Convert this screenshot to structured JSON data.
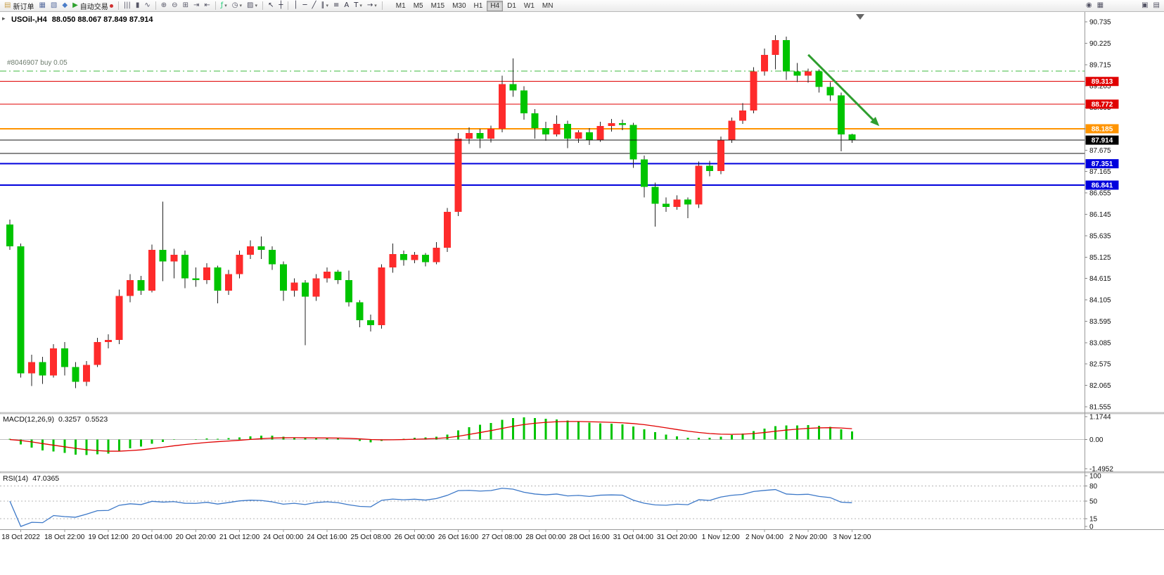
{
  "toolbar": {
    "items": [
      {
        "name": "new-order-button",
        "glyph": "▤",
        "glyph_color": "#c9a14e",
        "label": "新订单"
      },
      {
        "name": "chart-window-button",
        "glyph": "▦",
        "glyph_color": "#5a6fa0"
      },
      {
        "name": "profiles-button",
        "glyph": "▧",
        "glyph_color": "#5a6fa0"
      },
      {
        "name": "metaeditor-button",
        "glyph": "◆",
        "glyph_color": "#4a7dc8"
      },
      {
        "name": "autotrading-button",
        "glyph": "▶",
        "glyph_color": "#2fa12f",
        "label": "自动交易",
        "status_dot": "#d03030"
      },
      {
        "sep": true
      },
      {
        "name": "bar-chart-button",
        "glyph": "|||",
        "glyph_color": "#556"
      },
      {
        "name": "candle-chart-button",
        "glyph": "▮",
        "glyph_color": "#556"
      },
      {
        "name": "line-chart-button",
        "glyph": "∿",
        "glyph_color": "#556"
      },
      {
        "sep": true
      },
      {
        "name": "zoom-in-button",
        "glyph": "⊕",
        "glyph_color": "#556"
      },
      {
        "name": "zoom-out-button",
        "glyph": "⊖",
        "glyph_color": "#556"
      },
      {
        "name": "tile-windows-button",
        "glyph": "⊞",
        "glyph_color": "#556"
      },
      {
        "name": "auto-scroll-button",
        "glyph": "⇥",
        "glyph_color": "#556"
      },
      {
        "name": "chart-shift-button",
        "glyph": "⇤",
        "glyph_color": "#556"
      },
      {
        "sep": true
      },
      {
        "name": "indicators-button",
        "glyph": "ƒ",
        "glyph_color": "#2c7",
        "dropdown": true
      },
      {
        "name": "periods-button",
        "glyph": "◷",
        "glyph_color": "#556",
        "dropdown": true
      },
      {
        "name": "templates-button",
        "glyph": "▨",
        "glyph_color": "#556",
        "dropdown": true
      },
      {
        "sep": true
      },
      {
        "name": "cursor-button",
        "glyph": "↖",
        "glyph_color": "#334"
      },
      {
        "name": "crosshair-button",
        "glyph": "┼",
        "glyph_color": "#334"
      },
      {
        "sep": true
      },
      {
        "name": "vertical-line-button",
        "glyph": "│",
        "glyph_color": "#334"
      },
      {
        "name": "horizontal-line-button",
        "glyph": "─",
        "glyph_color": "#334"
      },
      {
        "name": "trendline-button",
        "glyph": "╱",
        "glyph_color": "#334"
      },
      {
        "name": "channel-button",
        "glyph": "∥",
        "glyph_color": "#334",
        "dropdown": true
      },
      {
        "name": "fibonacci-button",
        "glyph": "≡",
        "glyph_color": "#334"
      },
      {
        "name": "text-button",
        "glyph": "A",
        "glyph_color": "#334"
      },
      {
        "name": "label-button",
        "glyph": "T",
        "glyph_color": "#334",
        "dropdown": true
      },
      {
        "name": "arrows-button",
        "glyph": "→",
        "glyph_color": "#334",
        "dropdown": true
      },
      {
        "sep": true
      }
    ],
    "timeframes": {
      "options": [
        "M1",
        "M5",
        "M15",
        "M30",
        "H1",
        "H4",
        "D1",
        "W1",
        "MN"
      ],
      "active": "H4"
    },
    "right_items": [
      {
        "name": "search-button",
        "glyph": "◉",
        "glyph_color": "#556"
      },
      {
        "name": "new-chart-button",
        "glyph": "▦",
        "glyph_color": "#556"
      }
    ],
    "far_right_items": [
      {
        "name": "data-window-button",
        "glyph": "▣",
        "glyph_color": "#556"
      },
      {
        "name": "market-watch-button",
        "glyph": "▤",
        "glyph_color": "#556"
      }
    ]
  },
  "chart": {
    "one_click_glyph": "▸",
    "title": {
      "symbol": "USOil-,H4",
      "ohlc": "88.050 88.067 87.849 87.914"
    },
    "position": {
      "label": "#8046907 buy 0.05",
      "price": 89.56,
      "color": "#3cb83c"
    },
    "price_axis": {
      "labels": [
        "90.735",
        "90.225",
        "89.715",
        "89.205",
        "88.695",
        "88.185",
        "87.675",
        "87.165",
        "86.655",
        "86.145",
        "85.635",
        "85.125",
        "84.615",
        "84.105",
        "83.595",
        "83.085",
        "82.575",
        "82.065",
        "81.555"
      ]
    },
    "hlines": [
      {
        "name": "resistance-line-upper",
        "price": 89.313,
        "color": "#e00000",
        "width": 1,
        "badge": "89.313"
      },
      {
        "name": "resistance-line-lower",
        "price": 88.772,
        "color": "#e00000",
        "width": 1,
        "badge": "88.772"
      },
      {
        "name": "pivot-line-orange",
        "price": 88.185,
        "color": "#ff9400",
        "width": 2,
        "badge": "88.185"
      },
      {
        "name": "support-line-black",
        "price": 87.6,
        "color": "#141414",
        "width": 1,
        "badge": null
      },
      {
        "name": "support-line-blue-upper",
        "price": 87.351,
        "color": "#0000dd",
        "width": 2,
        "badge": "87.351"
      },
      {
        "name": "support-line-blue-lower",
        "price": 86.841,
        "color": "#0000dd",
        "width": 2,
        "badge": "86.841"
      }
    ],
    "bid": {
      "price": 87.914,
      "color": "#141414",
      "badge": "87.914",
      "badge_bg": "#000000"
    },
    "arrow": {
      "from_index": 73,
      "from_price": 89.95,
      "to_index": 79.5,
      "to_price": 88.25,
      "color": "#2f9e2f"
    }
  },
  "chart_data": {
    "type": "candlestick",
    "symbol": "USOil-",
    "timeframe": "H4",
    "title": "USOil-,H4",
    "price_max": 90.735,
    "price_min": 81.555,
    "price_step": 0.51,
    "up_color": "#fe2b2b",
    "down_color": "#00c400",
    "wick_color": "#222222",
    "candles": [
      [
        85.9,
        86.02,
        85.3,
        85.38
      ],
      [
        85.38,
        85.45,
        82.25,
        82.35
      ],
      [
        82.35,
        82.8,
        82.05,
        82.62
      ],
      [
        82.62,
        82.75,
        82.1,
        82.3
      ],
      [
        82.3,
        83.05,
        82.25,
        82.95
      ],
      [
        82.95,
        83.1,
        82.3,
        82.5
      ],
      [
        82.5,
        82.62,
        82.0,
        82.15
      ],
      [
        82.15,
        82.65,
        82.05,
        82.55
      ],
      [
        82.55,
        83.2,
        82.5,
        83.1
      ],
      [
        83.1,
        83.28,
        82.95,
        83.15
      ],
      [
        83.15,
        84.35,
        83.05,
        84.2
      ],
      [
        84.2,
        84.72,
        84.05,
        84.58
      ],
      [
        84.58,
        84.68,
        84.22,
        84.32
      ],
      [
        84.32,
        85.42,
        84.28,
        85.3
      ],
      [
        85.3,
        86.45,
        84.55,
        85.02
      ],
      [
        85.02,
        85.32,
        84.62,
        85.18
      ],
      [
        85.18,
        85.28,
        84.38,
        84.62
      ],
      [
        84.62,
        84.88,
        84.42,
        84.58
      ],
      [
        84.58,
        84.98,
        84.48,
        84.88
      ],
      [
        84.88,
        84.92,
        84.02,
        84.32
      ],
      [
        84.32,
        84.82,
        84.22,
        84.72
      ],
      [
        84.72,
        85.28,
        84.62,
        85.18
      ],
      [
        85.18,
        85.52,
        85.08,
        85.38
      ],
      [
        85.38,
        85.62,
        85.08,
        85.3
      ],
      [
        85.3,
        85.38,
        84.82,
        84.95
      ],
      [
        84.95,
        85.02,
        84.08,
        84.32
      ],
      [
        84.32,
        84.62,
        84.18,
        84.52
      ],
      [
        84.52,
        84.58,
        83.02,
        84.18
      ],
      [
        84.18,
        84.72,
        84.08,
        84.62
      ],
      [
        84.62,
        84.88,
        84.52,
        84.78
      ],
      [
        84.78,
        84.82,
        84.48,
        84.58
      ],
      [
        84.58,
        84.8,
        83.95,
        84.05
      ],
      [
        84.05,
        84.1,
        83.45,
        83.62
      ],
      [
        83.62,
        83.75,
        83.35,
        83.5
      ],
      [
        83.5,
        84.95,
        83.42,
        84.88
      ],
      [
        84.88,
        85.45,
        84.75,
        85.2
      ],
      [
        85.2,
        85.28,
        84.92,
        85.05
      ],
      [
        85.05,
        85.25,
        84.98,
        85.18
      ],
      [
        85.18,
        85.22,
        84.9,
        85.0
      ],
      [
        85.0,
        85.48,
        84.95,
        85.35
      ],
      [
        85.35,
        86.3,
        85.25,
        86.2
      ],
      [
        86.2,
        88.08,
        86.1,
        87.95
      ],
      [
        87.95,
        88.22,
        87.82,
        88.08
      ],
      [
        88.08,
        88.18,
        87.72,
        87.95
      ],
      [
        87.95,
        88.26,
        87.86,
        88.18
      ],
      [
        88.18,
        89.45,
        88.1,
        89.25
      ],
      [
        89.25,
        89.86,
        88.95,
        89.1
      ],
      [
        89.1,
        89.2,
        88.4,
        88.55
      ],
      [
        88.55,
        88.65,
        87.95,
        88.2
      ],
      [
        88.2,
        88.35,
        87.9,
        88.05
      ],
      [
        88.05,
        88.5,
        88.0,
        88.3
      ],
      [
        88.3,
        88.38,
        87.72,
        87.95
      ],
      [
        87.95,
        88.15,
        87.85,
        88.1
      ],
      [
        88.1,
        88.2,
        87.8,
        87.92
      ],
      [
        87.92,
        88.35,
        87.87,
        88.25
      ],
      [
        88.25,
        88.42,
        88.12,
        88.32
      ],
      [
        88.32,
        88.4,
        88.15,
        88.28
      ],
      [
        88.28,
        88.33,
        87.25,
        87.45
      ],
      [
        87.45,
        87.55,
        86.55,
        86.8
      ],
      [
        86.8,
        86.9,
        85.85,
        86.4
      ],
      [
        86.4,
        86.55,
        86.2,
        86.32
      ],
      [
        86.32,
        86.6,
        86.25,
        86.5
      ],
      [
        86.5,
        86.55,
        86.05,
        86.38
      ],
      [
        86.38,
        87.4,
        86.3,
        87.3
      ],
      [
        87.3,
        87.42,
        87.05,
        87.18
      ],
      [
        87.18,
        88.0,
        87.1,
        87.92
      ],
      [
        87.92,
        88.45,
        87.85,
        88.38
      ],
      [
        88.38,
        88.8,
        88.3,
        88.62
      ],
      [
        88.62,
        89.65,
        88.55,
        89.55
      ],
      [
        89.55,
        90.1,
        89.45,
        89.95
      ],
      [
        89.95,
        90.42,
        89.6,
        90.3
      ],
      [
        90.3,
        90.38,
        89.35,
        89.55
      ],
      [
        89.55,
        89.75,
        89.3,
        89.45
      ],
      [
        89.45,
        89.62,
        89.28,
        89.55
      ],
      [
        89.55,
        89.6,
        89.05,
        89.18
      ],
      [
        89.18,
        89.3,
        88.85,
        88.98
      ],
      [
        88.98,
        89.05,
        87.65,
        88.05
      ],
      [
        88.05,
        88.067,
        87.849,
        87.914
      ]
    ],
    "time_labels": [
      "18 Oct 2022",
      "18 Oct 22:00",
      "19 Oct 12:00",
      "20 Oct 04:00",
      "20 Oct 20:00",
      "21 Oct 12:00",
      "24 Oct 00:00",
      "24 Oct 16:00",
      "25 Oct 08:00",
      "26 Oct 00:00",
      "26 Oct 16:00",
      "27 Oct 08:00",
      "28 Oct 00:00",
      "28 Oct 16:00",
      "31 Oct 04:00",
      "31 Oct 20:00",
      "1 Nov 12:00",
      "2 Nov 04:00",
      "2 Nov 20:00",
      "3 Nov 12:00"
    ],
    "label_start_index": 1,
    "label_every": 4
  },
  "indicators": {
    "macd": {
      "name": "MACD(12,26,9)",
      "value": "0.3257",
      "signal": "0.5523",
      "fast": 12,
      "slow": 26,
      "signal_period": 9,
      "scale": {
        "max": 1.1744,
        "min": -1.4952,
        "labels": [
          "1.1744",
          "0.00",
          "-1.4952"
        ]
      },
      "histogram_color": "#00c400",
      "signal_color": "#e00000"
    },
    "rsi": {
      "name": "RSI(14)",
      "value": "47.0365",
      "period": 14,
      "line_color": "#3c78c8",
      "scale_labels": [
        {
          "value": 100,
          "text": "100"
        },
        {
          "value": 80,
          "text": "80"
        },
        {
          "value": 50,
          "text": "50"
        },
        {
          "value": 15,
          "text": "15"
        },
        {
          "value": 0,
          "text": "0"
        }
      ],
      "levels": [
        80,
        50,
        15
      ]
    }
  }
}
